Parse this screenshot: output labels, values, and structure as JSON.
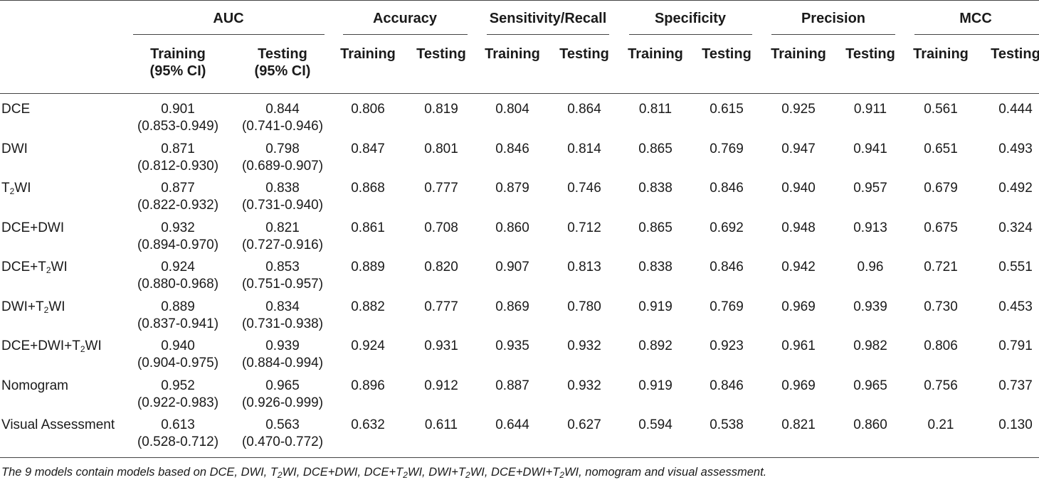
{
  "groups": [
    {
      "label": "AUC"
    },
    {
      "label": "Accuracy"
    },
    {
      "label": "Sensitivity/Recall"
    },
    {
      "label": "Specificity"
    },
    {
      "label": "Precision"
    },
    {
      "label": "MCC"
    }
  ],
  "subheaders": {
    "auc_training_l1": "Training",
    "auc_training_l2": "(95% CI)",
    "auc_testing_l1": "Testing",
    "auc_testing_l2": "(95% CI)",
    "training": "Training",
    "testing": "Testing"
  },
  "rows": [
    {
      "label": "DCE",
      "auc_train": "0.901",
      "auc_train_ci": "(0.853-0.949)",
      "auc_test": "0.844",
      "auc_test_ci": "(0.741-0.946)",
      "acc_train": "0.806",
      "acc_test": "0.819",
      "sens_train": "0.804",
      "sens_test": "0.864",
      "spec_train": "0.811",
      "spec_test": "0.615",
      "prec_train": "0.925",
      "prec_test": "0.911",
      "mcc_train": "0.561",
      "mcc_test": "0.444"
    },
    {
      "label": "DWI",
      "auc_train": "0.871",
      "auc_train_ci": "(0.812-0.930)",
      "auc_test": "0.798",
      "auc_test_ci": "(0.689-0.907)",
      "acc_train": "0.847",
      "acc_test": "0.801",
      "sens_train": "0.846",
      "sens_test": "0.814",
      "spec_train": "0.865",
      "spec_test": "0.769",
      "prec_train": "0.947",
      "prec_test": "0.941",
      "mcc_train": "0.651",
      "mcc_test": "0.493"
    },
    {
      "label_html": "T<sub>2</sub>WI",
      "auc_train": "0.877",
      "auc_train_ci": "(0.822-0.932)",
      "auc_test": "0.838",
      "auc_test_ci": "(0.731-0.940)",
      "acc_train": "0.868",
      "acc_test": "0.777",
      "sens_train": "0.879",
      "sens_test": "0.746",
      "spec_train": "0.838",
      "spec_test": "0.846",
      "prec_train": "0.940",
      "prec_test": "0.957",
      "mcc_train": "0.679",
      "mcc_test": "0.492"
    },
    {
      "label": "DCE+DWI",
      "auc_train": "0.932",
      "auc_train_ci": "(0.894-0.970)",
      "auc_test": "0.821",
      "auc_test_ci": "(0.727-0.916)",
      "acc_train": "0.861",
      "acc_test": "0.708",
      "sens_train": "0.860",
      "sens_test": "0.712",
      "spec_train": "0.865",
      "spec_test": "0.692",
      "prec_train": "0.948",
      "prec_test": "0.913",
      "mcc_train": "0.675",
      "mcc_test": "0.324"
    },
    {
      "label_html": "DCE+T<sub>2</sub>WI",
      "auc_train": "0.924",
      "auc_train_ci": "(0.880-0.968)",
      "auc_test": "0.853",
      "auc_test_ci": "(0.751-0.957)",
      "acc_train": "0.889",
      "acc_test": "0.820",
      "sens_train": "0.907",
      "sens_test": "0.813",
      "spec_train": "0.838",
      "spec_test": "0.846",
      "prec_train": "0.942",
      "prec_test": "0.96",
      "mcc_train": "0.721",
      "mcc_test": "0.551"
    },
    {
      "label_html": "DWI+T<sub>2</sub>WI",
      "auc_train": "0.889",
      "auc_train_ci": "(0.837-0.941)",
      "auc_test": "0.834",
      "auc_test_ci": "(0.731-0.938)",
      "acc_train": "0.882",
      "acc_test": "0.777",
      "sens_train": "0.869",
      "sens_test": "0.780",
      "spec_train": "0.919",
      "spec_test": "0.769",
      "prec_train": "0.969",
      "prec_test": "0.939",
      "mcc_train": "0.730",
      "mcc_test": "0.453"
    },
    {
      "label_html": "DCE+DWI+T<sub>2</sub>WI",
      "auc_train": "0.940",
      "auc_train_ci": "(0.904-0.975)",
      "auc_test": "0.939",
      "auc_test_ci": "(0.884-0.994)",
      "acc_train": "0.924",
      "acc_test": "0.931",
      "sens_train": "0.935",
      "sens_test": "0.932",
      "spec_train": "0.892",
      "spec_test": "0.923",
      "prec_train": "0.961",
      "prec_test": "0.982",
      "mcc_train": "0.806",
      "mcc_test": "0.791"
    },
    {
      "label": "Nomogram",
      "auc_train": "0.952",
      "auc_train_ci": "(0.922-0.983)",
      "auc_test": "0.965",
      "auc_test_ci": "(0.926-0.999)",
      "acc_train": "0.896",
      "acc_test": "0.912",
      "sens_train": "0.887",
      "sens_test": "0.932",
      "spec_train": "0.919",
      "spec_test": "0.846",
      "prec_train": "0.969",
      "prec_test": "0.965",
      "mcc_train": "0.756",
      "mcc_test": "0.737"
    },
    {
      "label": "Visual Assessment",
      "auc_train": "0.613",
      "auc_train_ci": "(0.528-0.712)",
      "auc_test": "0.563",
      "auc_test_ci": "(0.470-0.772)",
      "acc_train": "0.632",
      "acc_test": "0.611",
      "sens_train": "0.644",
      "sens_test": "0.627",
      "spec_train": "0.594",
      "spec_test": "0.538",
      "prec_train": "0.821",
      "prec_test": "0.860",
      "mcc_train": "0.21",
      "mcc_test": "0.130"
    }
  ],
  "footnote_html": "The 9 models contain models based on DCE, DWI, T<sub>2</sub>WI, DCE+DWI, DCE+T<sub>2</sub>WI, DWI+T<sub>2</sub>WI, DCE+DWI+T<sub>2</sub>WI, nomogram and visual assessment."
}
